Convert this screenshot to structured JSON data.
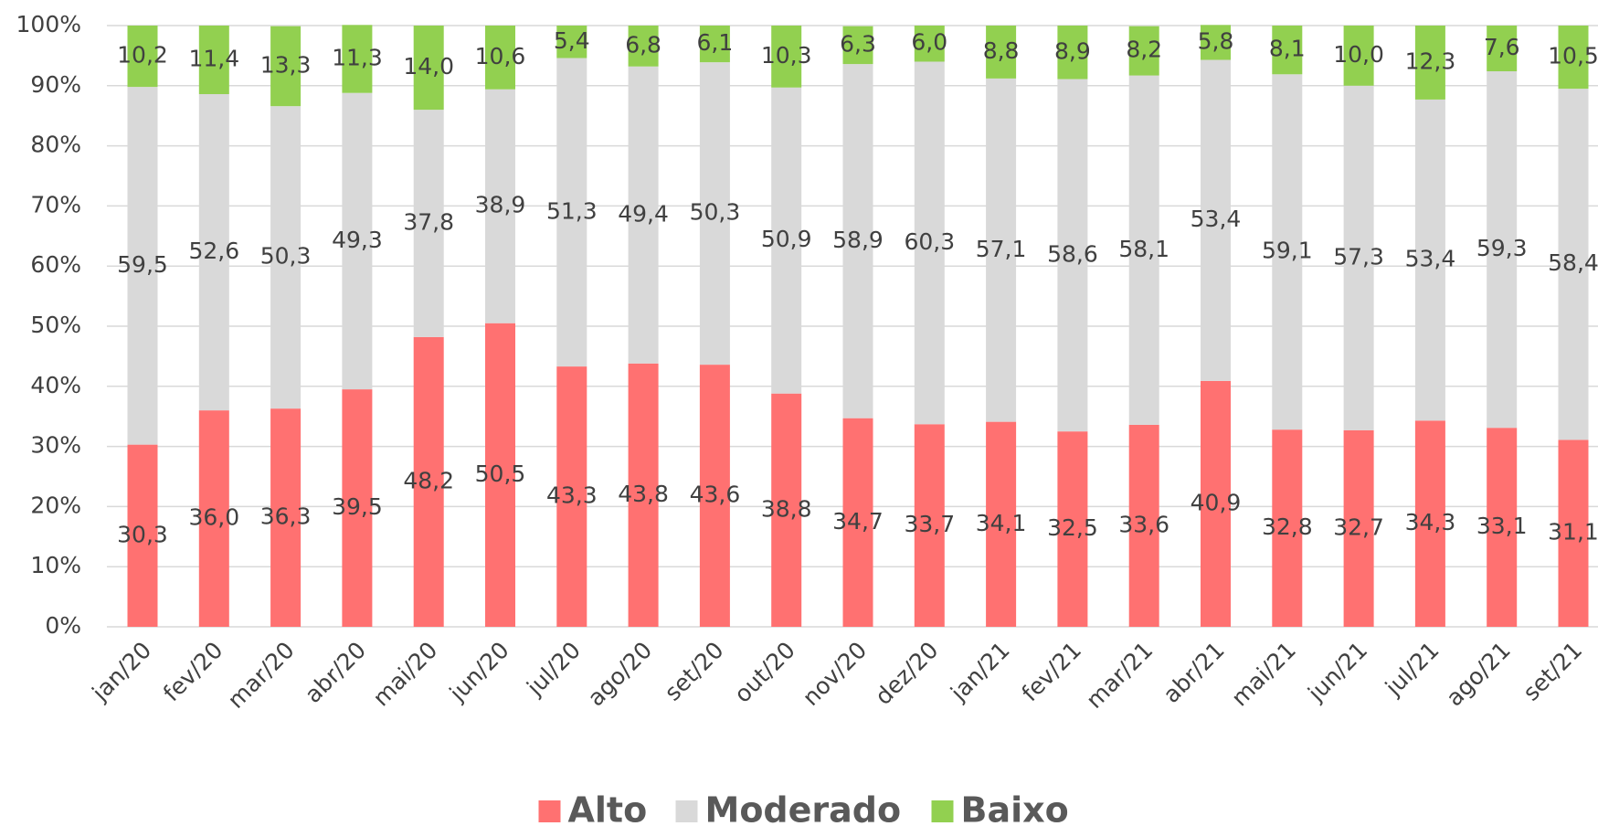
{
  "chart_data": {
    "type": "bar",
    "stacked": true,
    "categories": [
      "jan/20",
      "fev/20",
      "mar/20",
      "abr/20",
      "mai/20",
      "jun/20",
      "jul/20",
      "ago/20",
      "set/20",
      "out/20",
      "nov/20",
      "dez/20",
      "jan/21",
      "fev/21",
      "mar/21",
      "abr/21",
      "mai/21",
      "jun/21",
      "jul/21",
      "ago/21",
      "set/21"
    ],
    "series": [
      {
        "name": "Alto",
        "color": "#ff7171",
        "values": [
          30.3,
          36.0,
          36.3,
          39.5,
          48.2,
          50.5,
          43.3,
          43.8,
          43.6,
          38.8,
          34.7,
          33.7,
          34.1,
          32.5,
          33.6,
          40.9,
          32.8,
          32.7,
          34.3,
          33.1,
          31.1
        ],
        "value_labels": [
          "30,3",
          "36,0",
          "36,3",
          "39,5",
          "48,2",
          "50,5",
          "43,3",
          "43,8",
          "43,6",
          "38,8",
          "34,7",
          "33,7",
          "34,1",
          "32,5",
          "33,6",
          "40,9",
          "32,8",
          "32,7",
          "34,3",
          "33,1",
          "31,1"
        ]
      },
      {
        "name": "Moderado",
        "color": "#d9d9d9",
        "values": [
          59.5,
          52.6,
          50.3,
          49.3,
          37.8,
          38.9,
          51.3,
          49.4,
          50.3,
          50.9,
          58.9,
          60.3,
          57.1,
          58.6,
          58.1,
          53.4,
          59.1,
          57.3,
          53.4,
          59.3,
          58.4
        ],
        "value_labels": [
          "59,5",
          "52,6",
          "50,3",
          "49,3",
          "37,8",
          "38,9",
          "51,3",
          "49,4",
          "50,3",
          "50,9",
          "58,9",
          "60,3",
          "57,1",
          "58,6",
          "58,1",
          "53,4",
          "59,1",
          "57,3",
          "53,4",
          "59,3",
          "58,4"
        ]
      },
      {
        "name": "Baixo",
        "color": "#92d050",
        "values": [
          10.2,
          11.4,
          13.3,
          11.3,
          14.0,
          10.6,
          5.4,
          6.8,
          6.1,
          10.3,
          6.3,
          6.0,
          8.8,
          8.9,
          8.2,
          5.8,
          8.1,
          10.0,
          12.3,
          7.6,
          10.5
        ],
        "value_labels": [
          "10,2",
          "11,4",
          "13,3",
          "11,3",
          "14,0",
          "10,6",
          "5,4",
          "6,8",
          "6,1",
          "10,3",
          "6,3",
          "6,0",
          "8,8",
          "8,9",
          "8,2",
          "5,8",
          "8,1",
          "10,0",
          "12,3",
          "7,6",
          "10,5"
        ]
      }
    ],
    "ylim": [
      0,
      100
    ],
    "yticks": [
      {
        "value": 0,
        "label": "0%"
      },
      {
        "value": 10,
        "label": "10%"
      },
      {
        "value": 20,
        "label": "20%"
      },
      {
        "value": 30,
        "label": "30%"
      },
      {
        "value": 40,
        "label": "40%"
      },
      {
        "value": 50,
        "label": "50%"
      },
      {
        "value": 60,
        "label": "60%"
      },
      {
        "value": 70,
        "label": "70%"
      },
      {
        "value": 80,
        "label": "80%"
      },
      {
        "value": 90,
        "label": "90%"
      },
      {
        "value": 100,
        "label": "100%"
      }
    ],
    "grid": true,
    "legend": "bottom"
  }
}
